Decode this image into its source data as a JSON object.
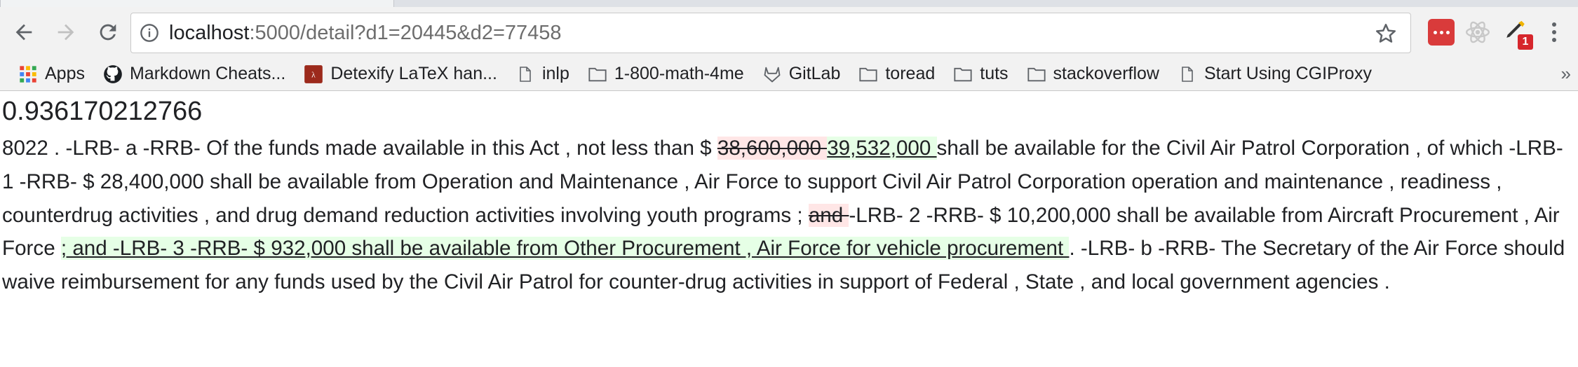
{
  "browser": {
    "url_host": "localhost",
    "url_rest": ":5000/detail?d1=20445&d2=77458",
    "extension_badge": "1",
    "bookmarks": [
      {
        "label": "Apps",
        "icon": "apps-grid-icon"
      },
      {
        "label": "Markdown Cheats...",
        "icon": "github-icon"
      },
      {
        "label": "Detexify LaTeX han...",
        "icon": "detexify-icon"
      },
      {
        "label": "inlp",
        "icon": "page-icon"
      },
      {
        "label": "1-800-math-4me",
        "icon": "folder-icon"
      },
      {
        "label": "GitLab",
        "icon": "gitlab-icon"
      },
      {
        "label": "toread",
        "icon": "folder-icon"
      },
      {
        "label": "tuts",
        "icon": "folder-icon"
      },
      {
        "label": "stackoverflow",
        "icon": "folder-icon"
      },
      {
        "label": "Start Using CGIProxy",
        "icon": "page-icon"
      }
    ],
    "overflow": "»"
  },
  "page": {
    "score": "0.936170212766",
    "segments": [
      {
        "type": "text",
        "text": "8022 . -LRB- a -RRB- Of the funds made available in this Act , not less than $ "
      },
      {
        "type": "del",
        "text": "38,600,000 "
      },
      {
        "type": "ins",
        "text": "39,532,000 "
      },
      {
        "type": "text",
        "text": "shall be available for the Civil Air Patrol Corporation , of which -LRB- 1 -RRB- $ 28,400,000 shall be available from Operation and Maintenance , Air Force to support Civil Air Patrol Corporation operation and maintenance , readiness , counterdrug activities , and drug demand reduction activities involving youth programs ; "
      },
      {
        "type": "del",
        "text": "and "
      },
      {
        "type": "text",
        "text": "-LRB- 2 -RRB- $ 10,200,000 shall be available from Aircraft Procurement , Air Force "
      },
      {
        "type": "ins",
        "text": "; and -LRB- 3 -RRB- $ 932,000 shall be available from Other Procurement , Air Force for vehicle procurement "
      },
      {
        "type": "text",
        "text": ". -LRB- b -RRB- The Secretary of the Air Force should waive reimbursement for any funds used by the Civil Air Patrol for counter-drug activities in support of Federal , State , and local government agencies ."
      }
    ]
  }
}
